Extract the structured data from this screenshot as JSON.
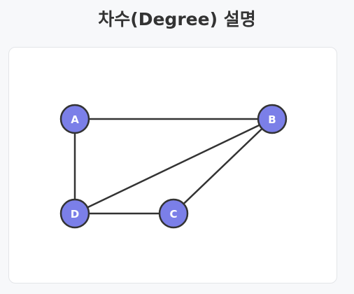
{
  "page": {
    "title": "차수(Degree) 설명"
  },
  "graph": {
    "nodes": [
      {
        "id": "A",
        "label": "A"
      },
      {
        "id": "B",
        "label": "B"
      },
      {
        "id": "C",
        "label": "C"
      },
      {
        "id": "D",
        "label": "D"
      }
    ],
    "edges": [
      {
        "from": "A",
        "to": "B"
      },
      {
        "from": "A",
        "to": "D"
      },
      {
        "from": "B",
        "to": "D"
      },
      {
        "from": "B",
        "to": "C"
      },
      {
        "from": "C",
        "to": "D"
      }
    ],
    "colors": {
      "node_fill": "#7b7fe8",
      "stroke": "#333333",
      "label": "#ffffff"
    }
  }
}
